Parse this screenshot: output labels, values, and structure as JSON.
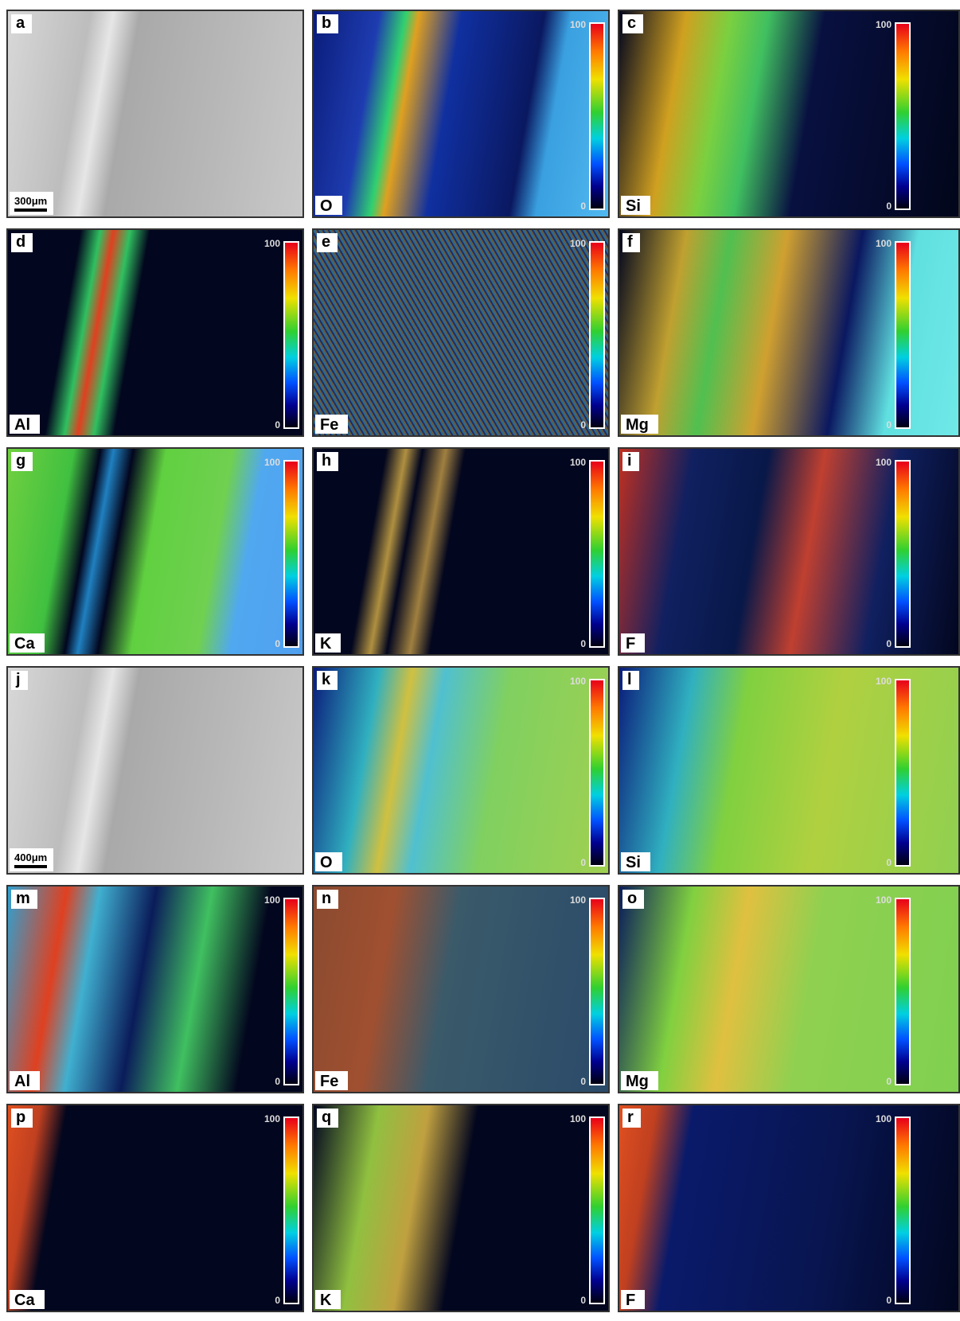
{
  "panels": [
    {
      "letter": "a",
      "scale_bar": "300μm"
    },
    {
      "letter": "b",
      "element": "O",
      "colorbar_max": 100,
      "colorbar_min": 0
    },
    {
      "letter": "c",
      "element": "Si",
      "colorbar_max": 100,
      "colorbar_min": 0
    },
    {
      "letter": "d",
      "element": "Al",
      "colorbar_max": 100,
      "colorbar_min": 0
    },
    {
      "letter": "e",
      "element": "Fe",
      "colorbar_max": 100,
      "colorbar_min": 0
    },
    {
      "letter": "f",
      "element": "Mg",
      "colorbar_max": 100,
      "colorbar_min": 0
    },
    {
      "letter": "g",
      "element": "Ca",
      "colorbar_max": 100,
      "colorbar_min": 0
    },
    {
      "letter": "h",
      "element": "K",
      "colorbar_max": 100,
      "colorbar_min": 0
    },
    {
      "letter": "i",
      "element": "F",
      "colorbar_max": 100,
      "colorbar_min": 0
    },
    {
      "letter": "j",
      "scale_bar": "400μm"
    },
    {
      "letter": "k",
      "element": "O",
      "colorbar_max": 100,
      "colorbar_min": 0
    },
    {
      "letter": "l",
      "element": "Si",
      "colorbar_max": 100,
      "colorbar_min": 0
    },
    {
      "letter": "m",
      "element": "Al",
      "colorbar_max": 100,
      "colorbar_min": 0
    },
    {
      "letter": "n",
      "element": "Fe",
      "colorbar_max": 100,
      "colorbar_min": 0
    },
    {
      "letter": "o",
      "element": "Mg",
      "colorbar_max": 100,
      "colorbar_min": 0
    },
    {
      "letter": "p",
      "element": "Ca",
      "colorbar_max": 100,
      "colorbar_min": 0
    },
    {
      "letter": "q",
      "element": "K",
      "colorbar_max": 100,
      "colorbar_min": 0
    },
    {
      "letter": "r",
      "element": "F",
      "colorbar_max": 100,
      "colorbar_min": 0
    }
  ]
}
